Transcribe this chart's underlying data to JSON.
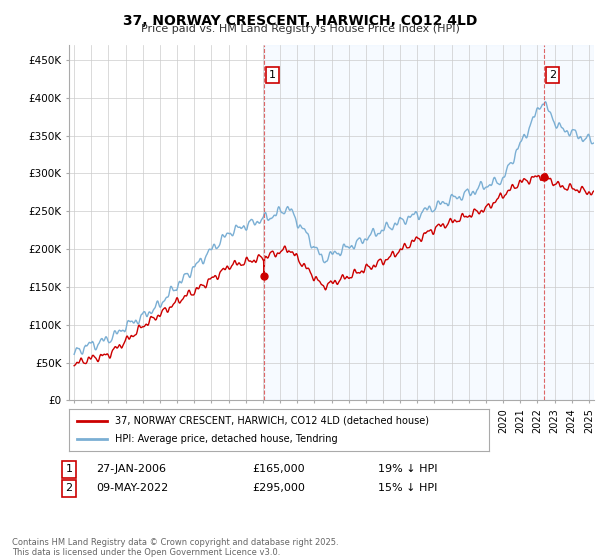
{
  "title": "37, NORWAY CRESCENT, HARWICH, CO12 4LD",
  "subtitle": "Price paid vs. HM Land Registry's House Price Index (HPI)",
  "ylabel_ticks": [
    "£0",
    "£50K",
    "£100K",
    "£150K",
    "£200K",
    "£250K",
    "£300K",
    "£350K",
    "£400K",
    "£450K"
  ],
  "ytick_values": [
    0,
    50000,
    100000,
    150000,
    200000,
    250000,
    300000,
    350000,
    400000,
    450000
  ],
  "ylim": [
    0,
    470000
  ],
  "xlim_start": 1994.7,
  "xlim_end": 2025.3,
  "sale1_date": 2006.07,
  "sale1_price": 165000,
  "sale1_label": "1",
  "sale2_date": 2022.36,
  "sale2_price": 295000,
  "sale2_label": "2",
  "line_color_property": "#cc0000",
  "line_color_hpi": "#7bafd4",
  "vline_color": "#dd6666",
  "shade_color": "#ddeeff",
  "legend_label1": "37, NORWAY CRESCENT, HARWICH, CO12 4LD (detached house)",
  "legend_label2": "HPI: Average price, detached house, Tendring",
  "annotation1_date": "27-JAN-2006",
  "annotation1_price": "£165,000",
  "annotation1_pct": "19% ↓ HPI",
  "annotation2_date": "09-MAY-2022",
  "annotation2_price": "£295,000",
  "annotation2_pct": "15% ↓ HPI",
  "footer": "Contains HM Land Registry data © Crown copyright and database right 2025.\nThis data is licensed under the Open Government Licence v3.0.",
  "background_color": "#ffffff",
  "grid_color": "#cccccc"
}
